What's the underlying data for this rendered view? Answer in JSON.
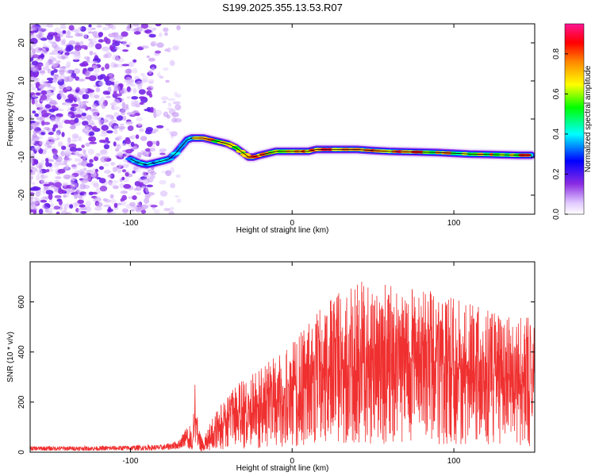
{
  "chart_data": [
    {
      "type": "heatmap",
      "title": "S199.2025.355.13.53.R07",
      "xlabel": "Height of straight line (km)",
      "ylabel": "Frequency (Hz)",
      "xlim": [
        -162,
        150
      ],
      "ylim": [
        -25,
        25
      ],
      "x_ticks": [
        -100,
        0,
        100
      ],
      "x_tick_labels": [
        "-100",
        "0",
        "100"
      ],
      "y_ticks": [
        -20,
        -10,
        0,
        10,
        20
      ],
      "y_tick_labels": [
        "-20",
        "-10",
        "0",
        "10",
        "20"
      ],
      "colorbar": {
        "label": "Normalized spectral amplitude",
        "range": [
          0,
          0.95
        ],
        "ticks": [
          0.0,
          0.2,
          0.4,
          0.6,
          0.8
        ],
        "tick_labels": [
          "0.0",
          "0.2",
          "0.4",
          "0.6",
          "0.8"
        ],
        "colors": [
          "#ffffff",
          "#e0c8ff",
          "#8a2be2",
          "#0000ff",
          "#00ffff",
          "#00ff00",
          "#ffff00",
          "#ff8800",
          "#ff0000",
          "#ff1493"
        ]
      },
      "ridge": {
        "x": [
          -100,
          -95,
          -90,
          -85,
          -80,
          -76,
          -72,
          -68,
          -65,
          -62,
          -58,
          -55,
          -50,
          -45,
          -40,
          -35,
          -30,
          -27,
          -24,
          -20,
          -15,
          -10,
          -5,
          0,
          5,
          10,
          15,
          20,
          30,
          40,
          50,
          60,
          70,
          80,
          90,
          100,
          110,
          120,
          130,
          140,
          148
        ],
        "y": [
          -10.5,
          -11.5,
          -12,
          -11.5,
          -11,
          -10.5,
          -9,
          -7,
          -5.5,
          -5,
          -5,
          -5,
          -5.5,
          -6,
          -6.5,
          -7.5,
          -9,
          -10,
          -10,
          -9.5,
          -9,
          -8.5,
          -8.5,
          -8.5,
          -8.5,
          -8.5,
          -8,
          -8,
          -8,
          -8,
          -8.3,
          -8.5,
          -8.6,
          -8.7,
          -8.8,
          -9,
          -9.2,
          -9.3,
          -9.4,
          -9.5,
          -9.5
        ]
      }
    },
    {
      "type": "line",
      "xlabel": "Height of straight line (km)",
      "ylabel": "SNR (10 * v/v)",
      "xlim": [
        -162,
        150
      ],
      "ylim": [
        0,
        760
      ],
      "x_ticks": [
        -100,
        0,
        100
      ],
      "x_tick_labels": [
        "-100",
        "0",
        "100"
      ],
      "y_ticks": [
        0,
        200,
        400,
        600
      ],
      "y_tick_labels": [
        "0",
        "200",
        "400",
        "600"
      ],
      "color": "#f03030",
      "envelope": {
        "x": [
          -162,
          -120,
          -80,
          -70,
          -62,
          -60,
          -58,
          -55,
          -50,
          -40,
          -30,
          -20,
          -10,
          0,
          10,
          20,
          30,
          40,
          50,
          60,
          70,
          80,
          90,
          100,
          110,
          120,
          130,
          140,
          150
        ],
        "y": [
          20,
          20,
          25,
          40,
          120,
          250,
          90,
          40,
          120,
          210,
          270,
          300,
          350,
          400,
          470,
          540,
          590,
          620,
          620,
          610,
          600,
          590,
          580,
          560,
          540,
          520,
          500,
          490,
          490
        ]
      }
    }
  ]
}
